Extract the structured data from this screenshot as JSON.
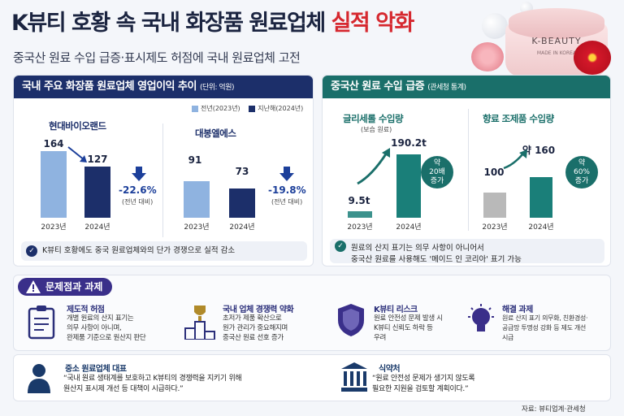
{
  "header": {
    "title_main": "K뷰티 호황 속 국내 화장품 원료업체",
    "title_highlight": "실적 악화",
    "subtitle": "중국산 원료 수입 급증·표시제도 허점에 국내 원료업체 고전",
    "jar_brand": "K-BEAUTY",
    "jar_origin": "MADE IN KOREA"
  },
  "colors": {
    "navy": "#1c2f6a",
    "light_blue": "#8fb3e0",
    "teal": "#1a7f79",
    "gray": "#b9b9b9",
    "red": "#d6282f"
  },
  "left_panel": {
    "title": "국내 주요 화장품 원료업체 영업이익 추이",
    "unit": "(단위: 억원)",
    "legend": [
      "전년(2023년)",
      "지난해(2024년)"
    ],
    "note": "K뷰티 호황에도 중국 원료업체와의 단가 경쟁으로 실적 감소"
  },
  "right_panel": {
    "title": "중국산 원료 수입 급증",
    "source": "(관세청 통계)",
    "note_line1": "원료의 산지 표기는 의무 사항이 아니어서",
    "note_line2": "중국산 원료를 사용해도 '메이드 인 코리아' 표기 가능"
  },
  "chart_data": [
    {
      "type": "bar",
      "title": "현대바이오랜드",
      "categories": [
        "2023년",
        "2024년"
      ],
      "values": [
        164,
        127
      ],
      "value_labels": [
        "164",
        "127"
      ],
      "change_label": "-22.6%",
      "change_sub": "(전년 대비)"
    },
    {
      "type": "bar",
      "title": "대봉엘에스",
      "categories": [
        "2023년",
        "2024년"
      ],
      "values": [
        91,
        73
      ],
      "value_labels": [
        "91",
        "73"
      ],
      "change_label": "-19.8%",
      "change_sub": "(전년 대비)"
    },
    {
      "type": "bar",
      "title": "글리세롤 수입량",
      "subtitle": "(보습 원료)",
      "categories": [
        "2023년",
        "2024년"
      ],
      "values": [
        9.5,
        190.2
      ],
      "value_labels": [
        "9.5t",
        "190.2t"
      ],
      "change_label": "약\n20배\n증가"
    },
    {
      "type": "bar",
      "title": "향료 조제품 수입량",
      "categories": [
        "2023년",
        "2024년"
      ],
      "values": [
        100,
        160
      ],
      "value_labels": [
        "100",
        "약 160"
      ],
      "change_label": "약\n60%\n증가"
    }
  ],
  "issues": {
    "header": "문제점과 과제",
    "items": [
      {
        "icon": "clipboard-icon",
        "title": "제도적 허점",
        "lines": [
          "개별 원료의 산지 표기는",
          "의무 사항이 아니며,",
          "완제품 기준으로 원산지 판단"
        ]
      },
      {
        "icon": "podium-icon",
        "title": "국내 업체 경쟁력 약화",
        "lines": [
          "초저가 제품 확산으로",
          "원가 관리가 중요해지며",
          "중국산 원료 선호 증가"
        ]
      },
      {
        "icon": "shield-icon",
        "title": "K뷰티 리스크",
        "lines": [
          "원료 안전성 문제 발생 시",
          "K뷰티 신뢰도 하락 등",
          "우려"
        ]
      },
      {
        "icon": "lightbulb-icon",
        "title": "해결 과제",
        "lines": [
          "원료 산지 표기 의무화, 친환경성·",
          "공급망 투명성 강화 등 제도 개선",
          "시급"
        ]
      }
    ],
    "quotes": [
      {
        "icon": "person-icon",
        "title": "중소 원료업체 대표",
        "lines": [
          "“국내 원료 생태계를 보호하고 K뷰티의 경쟁력을 지키기 위해",
          "원산지 표시제 개선 등 대책이 시급하다.”"
        ]
      },
      {
        "icon": "bank-icon",
        "title": "식약처",
        "lines": [
          "“원료 안전성 문제가 생기지 않도록",
          "필요한 지원을 검토할 계획이다.”"
        ]
      }
    ],
    "source": "자료: 뷰티업계·관세청"
  }
}
